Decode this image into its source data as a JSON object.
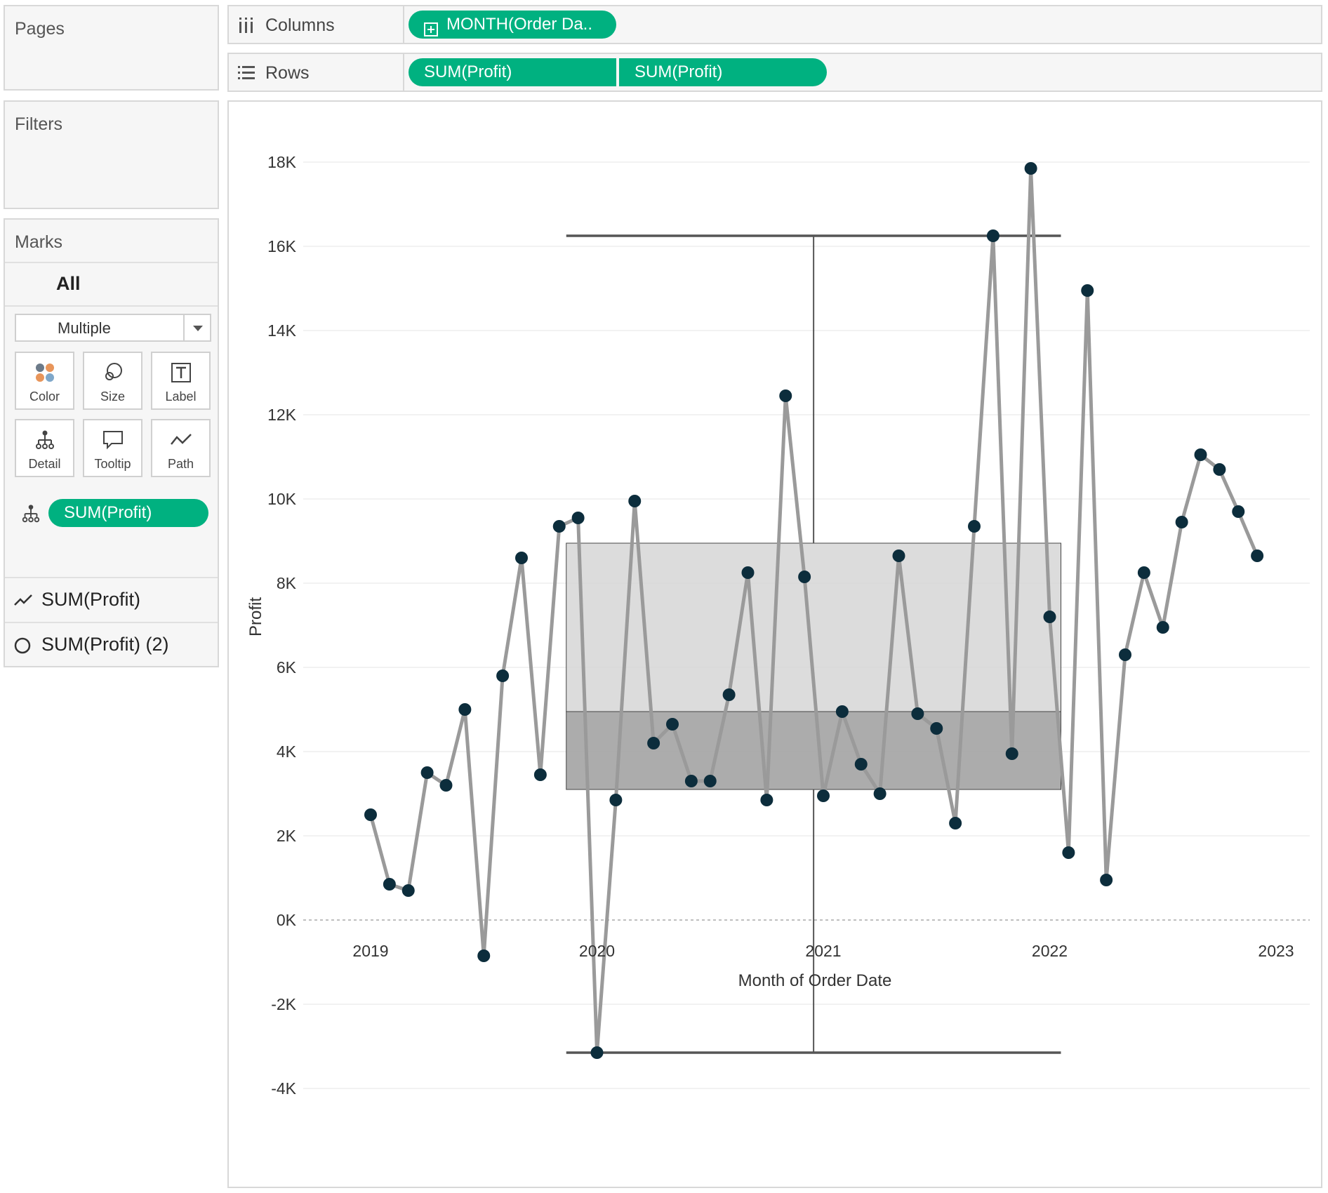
{
  "pages_card": {
    "title": "Pages"
  },
  "filters_card": {
    "title": "Filters"
  },
  "marks_card": {
    "title": "Marks",
    "all_label": "All",
    "mark_type": "Multiple",
    "buttons": [
      {
        "label": "Color",
        "icon": "color-icon"
      },
      {
        "label": "Size",
        "icon": "size-icon"
      },
      {
        "label": "Label",
        "icon": "label-icon"
      },
      {
        "label": "Detail",
        "icon": "detail-icon"
      },
      {
        "label": "Tooltip",
        "icon": "tooltip-icon"
      },
      {
        "label": "Path",
        "icon": "path-icon"
      }
    ],
    "detail_pill": "SUM(Profit)",
    "layers": [
      {
        "label": "SUM(Profit)",
        "icon": "line-icon"
      },
      {
        "label": "SUM(Profit) (2)",
        "icon": "circle-icon"
      }
    ]
  },
  "shelves": {
    "columns": {
      "label": "Columns",
      "pill": "MONTH(Order Da..",
      "pill_icon": "plus-box-icon"
    },
    "rows": {
      "label": "Rows",
      "pills": [
        "SUM(Profit)",
        "SUM(Profit)"
      ]
    }
  },
  "colors": {
    "pill": "#00b180",
    "line": "#9a9a9a",
    "dot": "#0c2d3c",
    "box_upper": "#d6d6d6",
    "box_lower": "#a3a3a3",
    "whisker": "#555555"
  },
  "chart_data": {
    "type": "line",
    "title": "",
    "xlabel": "Month of Order Date",
    "ylabel": "Profit",
    "x_ticks": [
      "2019",
      "2020",
      "2021",
      "2022",
      "2023"
    ],
    "y_ticks": [
      "18K",
      "16K",
      "14K",
      "12K",
      "10K",
      "8K",
      "6K",
      "4K",
      "2K",
      "0K",
      "-2K",
      "-4K"
    ],
    "ylim": [
      -4400,
      19400
    ],
    "grid": true,
    "reference_line": {
      "value": 0,
      "style": "dashed"
    },
    "series": [
      {
        "name": "SUM(Profit)",
        "x": [
          "2019-01",
          "2019-02",
          "2019-03",
          "2019-04",
          "2019-05",
          "2019-06",
          "2019-07",
          "2019-08",
          "2019-09",
          "2019-10",
          "2019-11",
          "2019-12",
          "2020-01",
          "2020-02",
          "2020-03",
          "2020-04",
          "2020-05",
          "2020-06",
          "2020-07",
          "2020-08",
          "2020-09",
          "2020-10",
          "2020-11",
          "2020-12",
          "2021-01",
          "2021-02",
          "2021-03",
          "2021-04",
          "2021-05",
          "2021-06",
          "2021-07",
          "2021-08",
          "2021-09",
          "2021-10",
          "2021-11",
          "2021-12",
          "2022-01",
          "2022-02",
          "2022-03",
          "2022-04",
          "2022-05",
          "2022-06",
          "2022-07",
          "2022-08",
          "2022-09",
          "2022-10",
          "2022-11",
          "2022-12"
        ],
        "values": [
          2500,
          850,
          700,
          3500,
          3200,
          5000,
          -850,
          5800,
          8600,
          3450,
          9350,
          9550,
          -3150,
          2850,
          9950,
          4200,
          4650,
          3300,
          3300,
          5350,
          8250,
          2850,
          12450,
          8150,
          2950,
          4950,
          3700,
          3000,
          8650,
          4900,
          4550,
          2300,
          9350,
          16250,
          3950,
          17850,
          7200,
          1600,
          14950,
          950,
          6300,
          8250,
          6950,
          9450,
          11050,
          10700,
          9700,
          8650
        ]
      }
    ],
    "box_plot": {
      "whisker_low": -3150,
      "lower_quartile": 3100,
      "median": 4950,
      "upper_quartile": 8950,
      "whisker_high": 16250,
      "x_start": "2019-11",
      "x_end": "2022-01"
    }
  }
}
